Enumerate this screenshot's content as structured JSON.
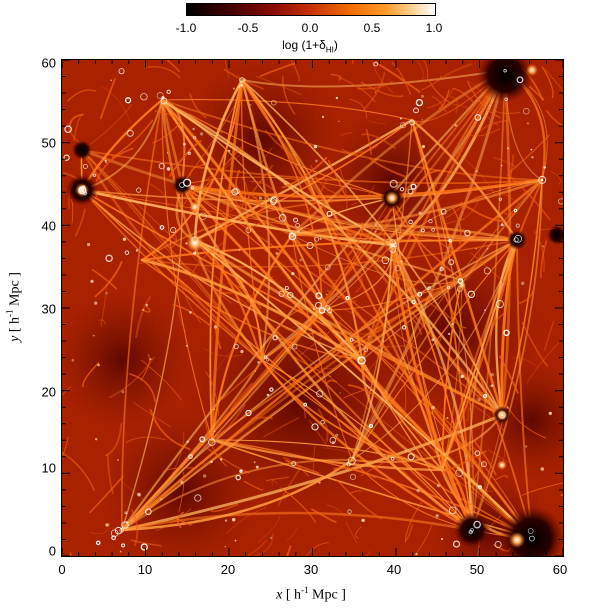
{
  "colorbar": {
    "ticks": [
      "-1.0",
      "-0.5",
      "0.0",
      "0.5",
      "1.0"
    ],
    "title_prefix": "log (1+δ",
    "title_sub": "HI",
    "title_suffix": ")"
  },
  "axes": {
    "x_ticks": [
      "0",
      "10",
      "20",
      "30",
      "40",
      "50",
      "60"
    ],
    "y_ticks": [
      "0",
      "10",
      "20",
      "30",
      "40",
      "50",
      "60"
    ],
    "x_title_var": "x",
    "y_title_var": "y",
    "title_unit_open": " [ h",
    "title_unit_sup": "-1",
    "title_unit_close": " Mpc ]"
  },
  "colors": {
    "void": "#7a0e00",
    "filament": "#ff8a1e",
    "halo": "#ffffff",
    "dark_node": "#1a0000"
  }
}
